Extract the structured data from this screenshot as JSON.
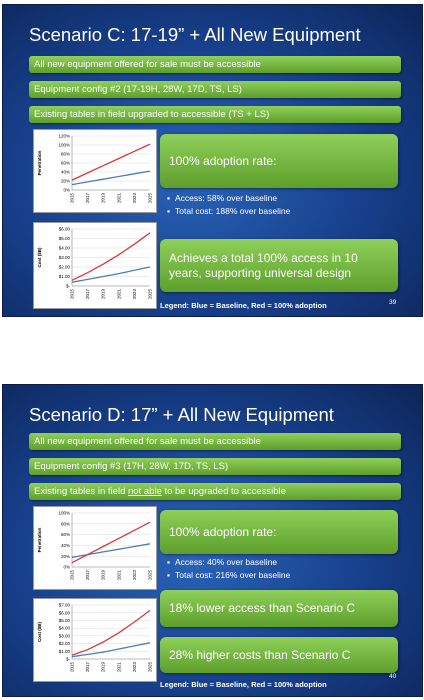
{
  "slides": [
    {
      "title": "Scenario C: 17-19” + All New Equipment",
      "bars": [
        {
          "parts": [
            {
              "text": "All new equipment offered for sale must be accessible",
              "underline": false
            }
          ]
        },
        {
          "parts": [
            {
              "text": "Equipment config #2 (17-19H, 28W, 17D, TS, LS)",
              "underline": false
            }
          ]
        },
        {
          "parts": [
            {
              "text": "Existing tables in field upgraded to accessible (TS + LS)",
              "underline": false
            }
          ]
        }
      ],
      "adoption_label": "100% adoption rate:",
      "bullets": [
        "Access: 58% over baseline",
        "Total cost: 188% over baseline"
      ],
      "callouts": [
        "Achieves a total 100% access in 10 years, supporting universal design"
      ],
      "legend": "Legend: Blue = Baseline, Red = 100% adoption",
      "page_number": "39"
    },
    {
      "title": "Scenario D: 17” + All New Equipment",
      "bars": [
        {
          "parts": [
            {
              "text": "All new equipment offered for sale must be accessible",
              "underline": false
            }
          ]
        },
        {
          "parts": [
            {
              "text": "Equipment config #3 (17H, 28W, 17D, TS, LS)",
              "underline": false
            }
          ]
        },
        {
          "parts": [
            {
              "text": "Existing tables in field ",
              "underline": false
            },
            {
              "text": "not able",
              "underline": true
            },
            {
              "text": " to be upgraded to accessible",
              "underline": false
            }
          ]
        }
      ],
      "adoption_label": "100% adoption rate:",
      "bullets": [
        "Access: 40% over baseline",
        "Total cost: 216% over baseline"
      ],
      "callouts": [
        "18% lower access than Scenario C",
        "28% higher costs than Scenario C"
      ],
      "legend": "Legend: Blue = Baseline, Red = 100% adoption",
      "page_number": "40"
    }
  ],
  "colors": {
    "baseline": "#4a7ebb",
    "adoption": "#d9383a"
  },
  "chart_data": [
    {
      "type": "line",
      "slide": "Scenario C",
      "ylabel": "Penetration",
      "x": [
        "2015",
        "2017",
        "2019",
        "2021",
        "2023",
        "2025"
      ],
      "ylim": [
        0,
        120
      ],
      "yticks": [
        "0%",
        "20%",
        "40%",
        "60%",
        "80%",
        "100%",
        "120%"
      ],
      "ytick_values": [
        0,
        20,
        40,
        60,
        80,
        100,
        120
      ],
      "series": [
        {
          "values": [
            12,
            18,
            24,
            30,
            36,
            42
          ],
          "color": "#4a7ebb"
        },
        {
          "values": [
            22,
            38,
            54,
            70,
            86,
            102
          ],
          "color": "#d9383a"
        }
      ]
    },
    {
      "type": "line",
      "slide": "Scenario C",
      "ylabel": "Cost ($B)",
      "x": [
        "2015",
        "2017",
        "2019",
        "2021",
        "2023",
        "2025"
      ],
      "ylim": [
        0,
        6
      ],
      "yticks": [
        "$-",
        "$1.00",
        "$2.00",
        "$3.00",
        "$4.00",
        "$5.00",
        "$6.00"
      ],
      "ytick_values": [
        0,
        1,
        2,
        3,
        4,
        5,
        6
      ],
      "series": [
        {
          "values": [
            0.4,
            0.7,
            1.0,
            1.3,
            1.65,
            2.0
          ],
          "color": "#4a7ebb"
        },
        {
          "values": [
            0.6,
            1.4,
            2.3,
            3.3,
            4.4,
            5.6
          ],
          "color": "#d9383a"
        }
      ]
    },
    {
      "type": "line",
      "slide": "Scenario D",
      "ylabel": "Penetration",
      "x": [
        "2015",
        "2017",
        "2019",
        "2021",
        "2023",
        "2025"
      ],
      "ylim": [
        0,
        100
      ],
      "yticks": [
        "0%",
        "20%",
        "40%",
        "60%",
        "80%",
        "100%"
      ],
      "ytick_values": [
        0,
        20,
        40,
        60,
        80,
        100
      ],
      "series": [
        {
          "values": [
            18,
            23,
            28,
            33,
            38,
            43
          ],
          "color": "#4a7ebb"
        },
        {
          "values": [
            8,
            23,
            38,
            53,
            68,
            83
          ],
          "color": "#d9383a"
        }
      ]
    },
    {
      "type": "line",
      "slide": "Scenario D",
      "ylabel": "Cost ($B)",
      "x": [
        "2015",
        "2017",
        "2019",
        "2021",
        "2023",
        "2025"
      ],
      "ylim": [
        0,
        7
      ],
      "yticks": [
        "$-",
        "$1.00",
        "$2.00",
        "$3.00",
        "$4.00",
        "$5.00",
        "$6.00",
        "$7.00"
      ],
      "ytick_values": [
        0,
        1,
        2,
        3,
        4,
        5,
        6,
        7
      ],
      "series": [
        {
          "values": [
            0.3,
            0.6,
            0.9,
            1.3,
            1.7,
            2.1
          ],
          "color": "#4a7ebb"
        },
        {
          "values": [
            0.5,
            1.2,
            2.2,
            3.4,
            4.8,
            6.3
          ],
          "color": "#d9383a"
        }
      ]
    }
  ]
}
